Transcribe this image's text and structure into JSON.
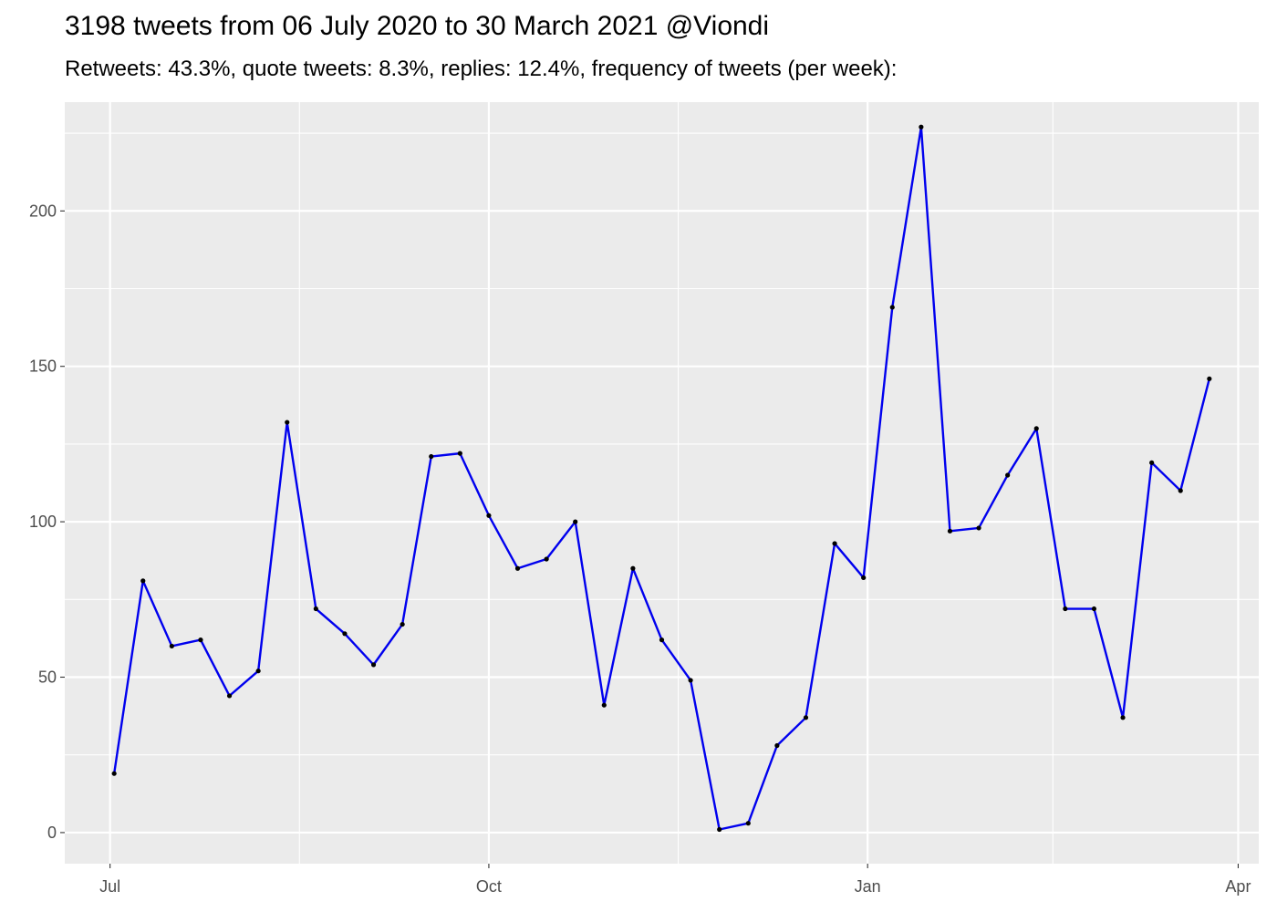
{
  "chart_data": {
    "type": "line",
    "title": "3198 tweets from 06 July 2020 to 30 March 2021 @Viondi",
    "subtitle": "Retweets: 43.3%, quote tweets: 8.3%, replies: 12.4%, frequency of tweets (per week):",
    "xlabel": "",
    "ylabel": "",
    "x_axis_type": "date",
    "xlim": [
      "2020-06-20",
      "2021-04-06"
    ],
    "ylim": [
      -10,
      235
    ],
    "y_ticks": [
      0,
      50,
      100,
      150,
      200
    ],
    "x_ticks": [
      {
        "date": "2020-07-01",
        "label": "Jul"
      },
      {
        "date": "2020-10-01",
        "label": "Oct"
      },
      {
        "date": "2021-01-01",
        "label": "Jan"
      },
      {
        "date": "2021-04-01",
        "label": "Apr"
      }
    ],
    "x_minor_ticks": [
      "2020-08-16",
      "2020-11-16",
      "2021-02-15"
    ],
    "grid": true,
    "line_color": "#0000ee",
    "point_color": "#000000",
    "panel_background": "#ebebeb",
    "grid_color": "#ffffff",
    "series": [
      {
        "points": [
          {
            "x": "2020-07-02",
            "y": 19
          },
          {
            "x": "2020-07-09",
            "y": 81
          },
          {
            "x": "2020-07-16",
            "y": 60
          },
          {
            "x": "2020-07-23",
            "y": 62
          },
          {
            "x": "2020-07-30",
            "y": 44
          },
          {
            "x": "2020-08-06",
            "y": 52
          },
          {
            "x": "2020-08-13",
            "y": 132
          },
          {
            "x": "2020-08-20",
            "y": 72
          },
          {
            "x": "2020-08-27",
            "y": 64
          },
          {
            "x": "2020-09-03",
            "y": 54
          },
          {
            "x": "2020-09-10",
            "y": 67
          },
          {
            "x": "2020-09-17",
            "y": 121
          },
          {
            "x": "2020-09-24",
            "y": 122
          },
          {
            "x": "2020-10-01",
            "y": 102
          },
          {
            "x": "2020-10-08",
            "y": 85
          },
          {
            "x": "2020-10-15",
            "y": 88
          },
          {
            "x": "2020-10-22",
            "y": 100
          },
          {
            "x": "2020-10-29",
            "y": 41
          },
          {
            "x": "2020-11-05",
            "y": 85
          },
          {
            "x": "2020-11-12",
            "y": 62
          },
          {
            "x": "2020-11-19",
            "y": 49
          },
          {
            "x": "2020-11-26",
            "y": 1
          },
          {
            "x": "2020-12-03",
            "y": 3
          },
          {
            "x": "2020-12-10",
            "y": 28
          },
          {
            "x": "2020-12-17",
            "y": 37
          },
          {
            "x": "2020-12-24",
            "y": 93
          },
          {
            "x": "2020-12-31",
            "y": 82
          },
          {
            "x": "2021-01-07",
            "y": 169
          },
          {
            "x": "2021-01-14",
            "y": 227
          },
          {
            "x": "2021-01-21",
            "y": 97
          },
          {
            "x": "2021-01-28",
            "y": 98
          },
          {
            "x": "2021-02-04",
            "y": 115
          },
          {
            "x": "2021-02-11",
            "y": 130
          },
          {
            "x": "2021-02-18",
            "y": 72
          },
          {
            "x": "2021-02-25",
            "y": 72
          },
          {
            "x": "2021-03-04",
            "y": 37
          },
          {
            "x": "2021-03-11",
            "y": 119
          },
          {
            "x": "2021-03-18",
            "y": 110
          },
          {
            "x": "2021-03-25",
            "y": 146
          }
        ]
      }
    ]
  }
}
